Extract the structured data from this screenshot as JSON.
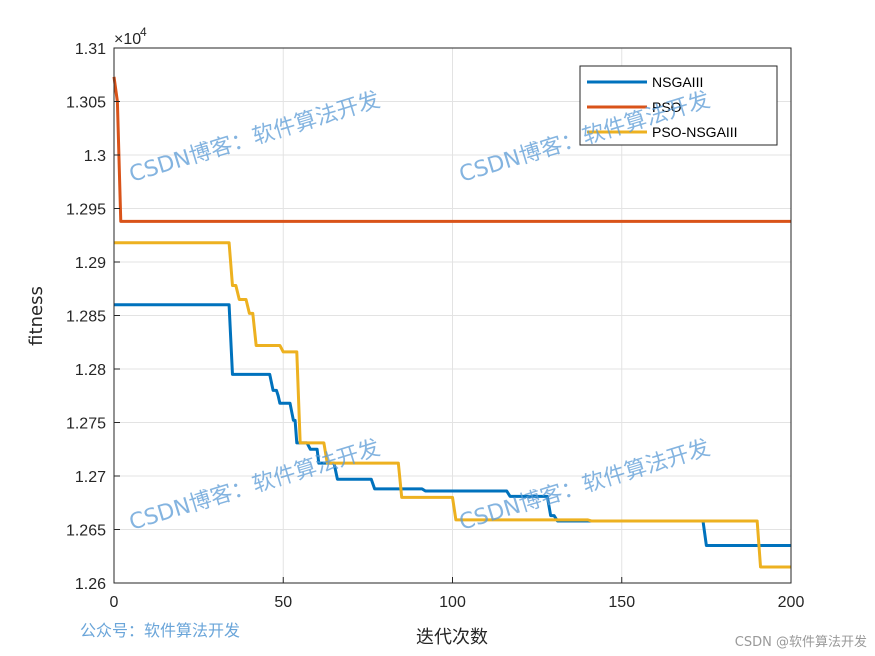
{
  "chart_data": {
    "type": "line",
    "xlabel": "迭代次数",
    "ylabel": "fitness",
    "exponent_label": "×10",
    "exponent_power": "4",
    "xlim": [
      0,
      200
    ],
    "ylim": [
      12600,
      13100
    ],
    "xticks": [
      0,
      50,
      100,
      150,
      200
    ],
    "yticks": [
      12600,
      12650,
      12700,
      12750,
      12800,
      12850,
      12900,
      12950,
      13000,
      13050,
      13100
    ],
    "ytick_labels": [
      "1.26",
      "1.265",
      "1.27",
      "1.275",
      "1.28",
      "1.285",
      "1.29",
      "1.295",
      "1.3",
      "1.305",
      "1.31"
    ],
    "grid": true,
    "legend_position": "top-right",
    "series": [
      {
        "name": "NSGAIII",
        "color": "#0072bd",
        "points": [
          [
            0,
            12860
          ],
          [
            34,
            12860
          ],
          [
            35,
            12795
          ],
          [
            46,
            12795
          ],
          [
            47,
            12780
          ],
          [
            48,
            12780
          ],
          [
            48.5,
            12775
          ],
          [
            49,
            12768
          ],
          [
            52,
            12768
          ],
          [
            53,
            12752
          ],
          [
            53.5,
            12752
          ],
          [
            54,
            12731
          ],
          [
            57,
            12731
          ],
          [
            58,
            12725
          ],
          [
            60,
            12725
          ],
          [
            60.5,
            12712
          ],
          [
            65,
            12712
          ],
          [
            66,
            12697
          ],
          [
            76,
            12697
          ],
          [
            77,
            12688
          ],
          [
            91,
            12688
          ],
          [
            92,
            12686
          ],
          [
            116,
            12686
          ],
          [
            117,
            12681
          ],
          [
            128,
            12681
          ],
          [
            129,
            12663
          ],
          [
            130,
            12663
          ],
          [
            131,
            12658
          ],
          [
            174,
            12658
          ],
          [
            175,
            12635
          ],
          [
            200,
            12635
          ]
        ]
      },
      {
        "name": "PSO",
        "color": "#d95319",
        "points": [
          [
            0,
            13073
          ],
          [
            1,
            13050
          ],
          [
            2,
            12938
          ],
          [
            200,
            12938
          ]
        ]
      },
      {
        "name": "PSO-NSGAIII",
        "color": "#edb120",
        "points": [
          [
            0,
            12918
          ],
          [
            34,
            12918
          ],
          [
            35,
            12878
          ],
          [
            36,
            12878
          ],
          [
            37,
            12865
          ],
          [
            39,
            12865
          ],
          [
            40,
            12852
          ],
          [
            41,
            12852
          ],
          [
            42,
            12822
          ],
          [
            49,
            12822
          ],
          [
            50,
            12816
          ],
          [
            54,
            12816
          ],
          [
            55,
            12731
          ],
          [
            62,
            12731
          ],
          [
            63,
            12712
          ],
          [
            84,
            12712
          ],
          [
            85,
            12680
          ],
          [
            100,
            12680
          ],
          [
            101,
            12659
          ],
          [
            140,
            12659
          ],
          [
            141,
            12658
          ],
          [
            190,
            12658
          ],
          [
            191,
            12615
          ],
          [
            200,
            12615
          ]
        ]
      }
    ]
  },
  "watermarks": [
    "CSDN博客：软件算法开发",
    "CSDN博客：软件算法开发",
    "CSDN博客：软件算法开发",
    "CSDN博客：软件算法开发"
  ],
  "footer_left": "公众号：软件算法开发",
  "footer_right": "CSDN @软件算法开发"
}
